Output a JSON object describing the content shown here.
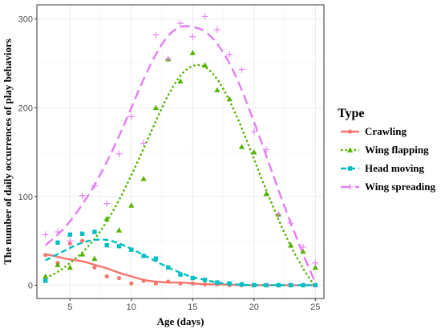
{
  "chart_data": {
    "type": "scatter",
    "xlabel": "Age (days)",
    "ylabel": "The number of daily occurrences of play behaviors",
    "xlim": [
      2.3,
      25.7
    ],
    "ylim": [
      -15,
      316
    ],
    "x_ticks": [
      5,
      10,
      15,
      20,
      25
    ],
    "y_ticks": [
      0,
      100,
      200,
      300
    ],
    "grid": true,
    "legend": {
      "title": "Type",
      "placement": "right"
    },
    "series": [
      {
        "name": "Crawling",
        "color": "#f8766d",
        "marker": "circle",
        "line_style": "solid",
        "points": [
          [
            3,
            34
          ],
          [
            4,
            25
          ],
          [
            5,
            47
          ],
          [
            6,
            50
          ],
          [
            7,
            20
          ],
          [
            8,
            10
          ],
          [
            9,
            8
          ],
          [
            10,
            2
          ],
          [
            11,
            5
          ],
          [
            12,
            2
          ],
          [
            13,
            4
          ],
          [
            14,
            2
          ],
          [
            15,
            2
          ],
          [
            16,
            1
          ],
          [
            17,
            1
          ],
          [
            18,
            0
          ],
          [
            19,
            0
          ],
          [
            20,
            0
          ],
          [
            21,
            0
          ],
          [
            22,
            0
          ],
          [
            23,
            0
          ],
          [
            24,
            0
          ],
          [
            25,
            0
          ]
        ],
        "trend": [
          [
            3,
            35
          ],
          [
            4,
            32
          ],
          [
            5,
            29
          ],
          [
            6,
            27
          ],
          [
            7,
            23
          ],
          [
            8,
            19
          ],
          [
            9,
            14
          ],
          [
            10,
            10
          ],
          [
            11,
            6
          ],
          [
            12,
            4
          ],
          [
            13,
            3
          ],
          [
            14,
            3
          ],
          [
            15,
            2
          ],
          [
            16,
            1
          ],
          [
            17,
            1
          ],
          [
            18,
            0.5
          ],
          [
            19,
            0
          ],
          [
            20,
            0
          ],
          [
            21,
            0
          ],
          [
            22,
            0
          ],
          [
            23,
            0
          ],
          [
            24,
            0
          ],
          [
            25,
            0
          ]
        ]
      },
      {
        "name": "Wing flapping",
        "color": "#53b400",
        "marker": "triangle",
        "line_style": "dotted",
        "points": [
          [
            3,
            10
          ],
          [
            4,
            23
          ],
          [
            5,
            20
          ],
          [
            6,
            35
          ],
          [
            7,
            30
          ],
          [
            8,
            75
          ],
          [
            9,
            62
          ],
          [
            10,
            90
          ],
          [
            11,
            120
          ],
          [
            12,
            200
          ],
          [
            13,
            255
          ],
          [
            14,
            230
          ],
          [
            15,
            262
          ],
          [
            16,
            248
          ],
          [
            17,
            220
          ],
          [
            18,
            210
          ],
          [
            19,
            156
          ],
          [
            20,
            150
          ],
          [
            21,
            103
          ],
          [
            22,
            80
          ],
          [
            23,
            45
          ],
          [
            24,
            38
          ],
          [
            25,
            20
          ]
        ],
        "trend": [
          [
            3,
            8
          ],
          [
            4,
            15
          ],
          [
            5,
            25
          ],
          [
            6,
            37
          ],
          [
            7,
            52
          ],
          [
            8,
            72
          ],
          [
            9,
            96
          ],
          [
            10,
            124
          ],
          [
            11,
            154
          ],
          [
            12,
            185
          ],
          [
            13,
            214
          ],
          [
            14,
            236
          ],
          [
            15,
            247
          ],
          [
            16,
            246
          ],
          [
            17,
            232
          ],
          [
            18,
            208
          ],
          [
            19,
            177
          ],
          [
            20,
            142
          ],
          [
            21,
            107
          ],
          [
            22,
            74
          ],
          [
            23,
            44
          ],
          [
            24,
            19
          ],
          [
            25,
            -2
          ]
        ]
      },
      {
        "name": "Head moving",
        "color": "#00bfc4",
        "marker": "square",
        "line_style": "dashed",
        "points": [
          [
            3,
            5
          ],
          [
            4,
            48
          ],
          [
            5,
            57
          ],
          [
            6,
            58
          ],
          [
            7,
            60
          ],
          [
            8,
            45
          ],
          [
            9,
            44
          ],
          [
            10,
            40
          ],
          [
            11,
            33
          ],
          [
            12,
            30
          ],
          [
            13,
            20
          ],
          [
            14,
            12
          ],
          [
            15,
            8
          ],
          [
            16,
            6
          ],
          [
            17,
            3
          ],
          [
            18,
            2
          ],
          [
            19,
            1
          ],
          [
            20,
            0
          ],
          [
            21,
            0
          ],
          [
            22,
            0
          ],
          [
            23,
            0
          ],
          [
            24,
            0
          ],
          [
            25,
            0
          ]
        ],
        "trend": [
          [
            3,
            28
          ],
          [
            4,
            35
          ],
          [
            5,
            42
          ],
          [
            6,
            48
          ],
          [
            7,
            51
          ],
          [
            8,
            51
          ],
          [
            9,
            47
          ],
          [
            10,
            41
          ],
          [
            11,
            34
          ],
          [
            12,
            27
          ],
          [
            13,
            20
          ],
          [
            14,
            14
          ],
          [
            15,
            9
          ],
          [
            16,
            6
          ],
          [
            17,
            3
          ],
          [
            18,
            1.5
          ],
          [
            19,
            0.5
          ],
          [
            20,
            0
          ],
          [
            21,
            0
          ],
          [
            22,
            0
          ],
          [
            23,
            0
          ],
          [
            24,
            0
          ],
          [
            25,
            0
          ]
        ]
      },
      {
        "name": "Wing spreading",
        "color": "#e67cf4",
        "marker": "plus",
        "line_style": "longdash",
        "points": [
          [
            3,
            57
          ],
          [
            4,
            60
          ],
          [
            5,
            50
          ],
          [
            6,
            101
          ],
          [
            7,
            112
          ],
          [
            8,
            92
          ],
          [
            9,
            148
          ],
          [
            10,
            190
          ],
          [
            11,
            160
          ],
          [
            12,
            282
          ],
          [
            13,
            255
          ],
          [
            14,
            295
          ],
          [
            15,
            280
          ],
          [
            16,
            303
          ],
          [
            17,
            288
          ],
          [
            18,
            260
          ],
          [
            19,
            243
          ],
          [
            20,
            173
          ],
          [
            21,
            153
          ],
          [
            22,
            80
          ],
          [
            23,
            70
          ],
          [
            24,
            43
          ],
          [
            25,
            25
          ]
        ],
        "trend": [
          [
            3,
            45
          ],
          [
            4,
            57
          ],
          [
            5,
            72
          ],
          [
            6,
            91
          ],
          [
            7,
            113
          ],
          [
            8,
            139
          ],
          [
            9,
            168
          ],
          [
            10,
            200
          ],
          [
            11,
            232
          ],
          [
            12,
            260
          ],
          [
            13,
            281
          ],
          [
            14,
            291
          ],
          [
            15,
            291
          ],
          [
            16,
            286
          ],
          [
            17,
            272
          ],
          [
            18,
            250
          ],
          [
            19,
            220
          ],
          [
            20,
            184
          ],
          [
            21,
            146
          ],
          [
            22,
            107
          ],
          [
            23,
            70
          ],
          [
            24,
            35
          ],
          [
            25,
            3
          ]
        ]
      }
    ]
  }
}
